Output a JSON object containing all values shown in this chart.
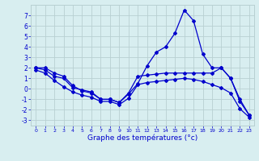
{
  "hours": [
    0,
    1,
    2,
    3,
    4,
    5,
    6,
    7,
    8,
    9,
    10,
    11,
    12,
    13,
    14,
    15,
    16,
    17,
    18,
    19,
    20,
    21,
    22,
    23
  ],
  "line_main": [
    2.0,
    2.0,
    1.5,
    1.2,
    0.3,
    -0.2,
    -0.4,
    -1.0,
    -1.0,
    -1.3,
    -0.5,
    0.5,
    2.2,
    3.5,
    4.0,
    5.3,
    7.5,
    6.5,
    3.3,
    2.0,
    2.0,
    1.0,
    -1.2,
    -2.5
  ],
  "line_mid": [
    2.0,
    1.8,
    1.2,
    1.0,
    0.1,
    -0.1,
    -0.3,
    -1.0,
    -1.0,
    -1.3,
    -0.4,
    1.2,
    1.3,
    1.4,
    1.5,
    1.5,
    1.5,
    1.5,
    1.5,
    1.5,
    2.0,
    1.0,
    -1.0,
    -2.5
  ],
  "line_low": [
    1.8,
    1.5,
    0.8,
    0.2,
    -0.3,
    -0.6,
    -0.8,
    -1.2,
    -1.2,
    -1.5,
    -0.9,
    0.4,
    0.6,
    0.7,
    0.8,
    0.9,
    1.0,
    0.9,
    0.7,
    0.4,
    0.1,
    -0.4,
    -1.9,
    -2.7
  ],
  "color": "#0000cc",
  "bg_color": "#d8eef0",
  "grid_color": "#b8d0d2",
  "xlabel": "Graphe des températures (°c)",
  "xlim": [
    -0.5,
    23.5
  ],
  "ylim": [
    -3.5,
    8.0
  ],
  "yticks": [
    -3,
    -2,
    -1,
    0,
    1,
    2,
    3,
    4,
    5,
    6,
    7
  ],
  "xticks": [
    0,
    1,
    2,
    3,
    4,
    5,
    6,
    7,
    8,
    9,
    10,
    11,
    12,
    13,
    14,
    15,
    16,
    17,
    18,
    19,
    20,
    21,
    22,
    23
  ],
  "figsize": [
    3.2,
    2.0
  ],
  "dpi": 100
}
